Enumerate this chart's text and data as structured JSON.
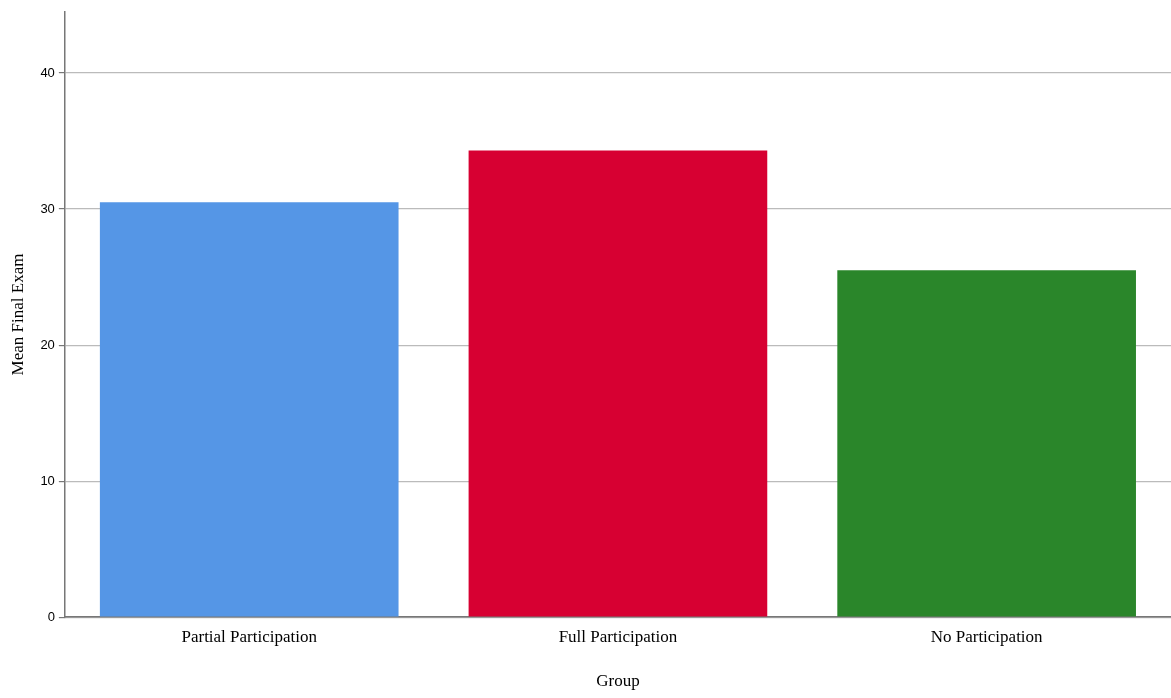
{
  "chart_data": {
    "type": "bar",
    "xlabel": "Group",
    "ylabel": "Mean Final Exam",
    "categories": [
      "Partial Participation",
      "Full Participation",
      "No Participation"
    ],
    "values": [
      30.5,
      34.3,
      25.5
    ],
    "colors": [
      "#5596e6",
      "#d70032",
      "#2a862a"
    ],
    "ylim": [
      0,
      44.5
    ],
    "yticks": [
      0,
      10,
      20,
      30,
      40
    ],
    "grid": "y",
    "legend": false
  }
}
